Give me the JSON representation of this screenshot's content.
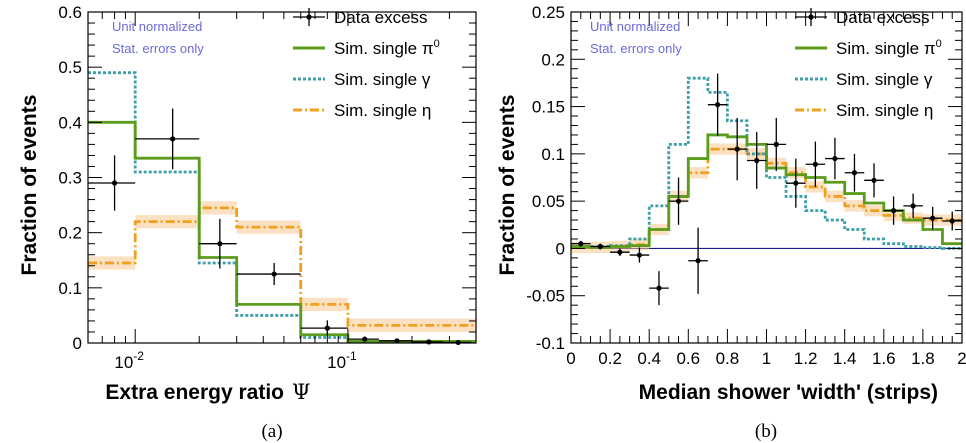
{
  "colors": {
    "data": "#000000",
    "pi0": "#5c9c1c",
    "gamma": "#3f9fa8",
    "eta": "#f0a020",
    "eta_band": "#f8c890",
    "zero_line": "#1a1a8a",
    "note": "#6a6ad8"
  },
  "chart_data": [
    {
      "type": "line",
      "panel": "(a)",
      "ylabel": "Fraction of events",
      "xlabel": "Extra energy ratio",
      "xlabel_symbol": "Ψ",
      "x_scale": "log",
      "xlim": [
        0.006,
        0.4
      ],
      "ylim": [
        0,
        0.6
      ],
      "y_ticks": [
        "0",
        "0.1",
        "0.2",
        "0.3",
        "0.4",
        "0.5",
        "0.6"
      ],
      "x_ticks": [
        {
          "base": "10",
          "exp": "-2"
        },
        {
          "base": "10",
          "exp": "-1"
        }
      ],
      "notes": [
        "Unit normalized",
        "Stat. errors only"
      ],
      "legend": {
        "position": "top-right",
        "entries": [
          {
            "key": "data",
            "label": "Data excess"
          },
          {
            "key": "pi0",
            "label": "Sim. single π",
            "sup": "0"
          },
          {
            "key": "gamma",
            "label": "Sim. single γ"
          },
          {
            "key": "eta",
            "label": "Sim. single η"
          }
        ]
      },
      "bin_edges": [
        0.006,
        0.01,
        0.02,
        0.03,
        0.06,
        0.1,
        0.4
      ],
      "series": [
        {
          "key": "pi0",
          "values": [
            0.4,
            0.335,
            0.155,
            0.07,
            0.015,
            0.003
          ]
        },
        {
          "key": "gamma",
          "values": [
            0.49,
            0.31,
            0.145,
            0.05,
            0.01,
            0.002
          ]
        },
        {
          "key": "eta",
          "values": [
            0.145,
            0.22,
            0.245,
            0.21,
            0.07,
            0.032
          ],
          "band": 0.012
        }
      ],
      "data_points": [
        {
          "x": 0.008,
          "y": 0.29,
          "xerr": [
            0.006,
            0.01
          ],
          "yerr": 0.05
        },
        {
          "x": 0.015,
          "y": 0.37,
          "xerr": [
            0.01,
            0.02
          ],
          "yerr": 0.055
        },
        {
          "x": 0.025,
          "y": 0.18,
          "xerr": [
            0.02,
            0.03
          ],
          "yerr": 0.045
        },
        {
          "x": 0.045,
          "y": 0.125,
          "xerr": [
            0.03,
            0.06
          ],
          "yerr": 0.02
        },
        {
          "x": 0.08,
          "y": 0.027,
          "xerr": [
            0.06,
            0.1
          ],
          "yerr": 0.014
        },
        {
          "x": 0.12,
          "y": 0.007,
          "xerr": [
            0.1,
            0.14
          ],
          "yerr": 0.004
        },
        {
          "x": 0.17,
          "y": 0.004,
          "xerr": [
            0.14,
            0.2
          ],
          "yerr": 0.003
        },
        {
          "x": 0.24,
          "y": 0.002,
          "xerr": [
            0.2,
            0.28
          ],
          "yerr": 0.002
        },
        {
          "x": 0.33,
          "y": 0.001,
          "xerr": [
            0.28,
            0.38
          ],
          "yerr": 0.001
        }
      ]
    },
    {
      "type": "line",
      "panel": "(b)",
      "ylabel": "Fraction of events",
      "xlabel": "Median shower 'width' (strips)",
      "x_scale": "linear",
      "xlim": [
        0,
        2
      ],
      "ylim": [
        -0.1,
        0.25
      ],
      "y_ticks": [
        {
          "v": -0.1,
          "label": "-0.1"
        },
        {
          "v": -0.05,
          "label": "-0.05"
        },
        {
          "v": 0,
          "label": "0"
        },
        {
          "v": 0.05,
          "label": "0.05"
        },
        {
          "v": 0.1,
          "label": "0.1"
        },
        {
          "v": 0.15,
          "label": "0.15"
        },
        {
          "v": 0.2,
          "label": "0.2"
        },
        {
          "v": 0.25,
          "label": "0.25"
        }
      ],
      "x_ticks": [
        {
          "v": 0,
          "label": "0"
        },
        {
          "v": 0.2,
          "label": "0.2"
        },
        {
          "v": 0.4,
          "label": "0.4"
        },
        {
          "v": 0.6,
          "label": "0.6"
        },
        {
          "v": 0.8,
          "label": "0.8"
        },
        {
          "v": 1,
          "label": "1"
        },
        {
          "v": 1.2,
          "label": "1.2"
        },
        {
          "v": 1.4,
          "label": "1.4"
        },
        {
          "v": 1.6,
          "label": "1.6"
        },
        {
          "v": 1.8,
          "label": "1.8"
        },
        {
          "v": 2,
          "label": "2"
        }
      ],
      "notes": [
        "Unit normalized",
        "Stat. errors only"
      ],
      "legend": {
        "position": "top-right",
        "entries": [
          {
            "key": "data",
            "label": "Data excess"
          },
          {
            "key": "pi0",
            "label": "Sim. single π",
            "sup": "0"
          },
          {
            "key": "gamma",
            "label": "Sim. single γ"
          },
          {
            "key": "eta",
            "label": "Sim. single η"
          }
        ]
      },
      "bin_edges": [
        0,
        0.1,
        0.2,
        0.3,
        0.4,
        0.5,
        0.6,
        0.7,
        0.8,
        0.9,
        1.0,
        1.1,
        1.2,
        1.3,
        1.4,
        1.5,
        1.6,
        1.7,
        1.8,
        1.9,
        2.0
      ],
      "series": [
        {
          "key": "pi0",
          "values": [
            0.002,
            0.001,
            0.002,
            0.003,
            0.02,
            0.055,
            0.095,
            0.12,
            0.118,
            0.11,
            0.085,
            0.078,
            0.075,
            0.07,
            0.058,
            0.048,
            0.04,
            0.03,
            0.02,
            0.005
          ]
        },
        {
          "key": "gamma",
          "values": [
            0.002,
            0.002,
            0.003,
            0.01,
            0.045,
            0.11,
            0.18,
            0.165,
            0.135,
            0.1,
            0.075,
            0.055,
            0.04,
            0.03,
            0.02,
            0.01,
            0.005,
            0.002,
            0.001,
            0.0
          ]
        },
        {
          "key": "eta",
          "values": [
            0.001,
            0.001,
            0.002,
            0.004,
            0.02,
            0.055,
            0.08,
            0.105,
            0.105,
            0.1,
            0.09,
            0.08,
            0.065,
            0.055,
            0.045,
            0.04,
            0.035,
            0.032,
            0.03,
            0.03
          ],
          "band": 0.006
        }
      ],
      "data_points": [
        {
          "x": 0.05,
          "y": 0.005,
          "xerr": [
            0,
            0.1
          ],
          "yerr": 0.003
        },
        {
          "x": 0.15,
          "y": 0.002,
          "xerr": [
            0.1,
            0.2
          ],
          "yerr": 0.003
        },
        {
          "x": 0.25,
          "y": -0.004,
          "xerr": [
            0.2,
            0.3
          ],
          "yerr": 0.004
        },
        {
          "x": 0.35,
          "y": -0.007,
          "xerr": [
            0.3,
            0.4
          ],
          "yerr": 0.008
        },
        {
          "x": 0.45,
          "y": -0.042,
          "xerr": [
            0.4,
            0.5
          ],
          "yerr": 0.018
        },
        {
          "x": 0.55,
          "y": 0.05,
          "xerr": [
            0.5,
            0.6
          ],
          "yerr": 0.025
        },
        {
          "x": 0.65,
          "y": -0.013,
          "xerr": [
            0.6,
            0.7
          ],
          "yerr": 0.035
        },
        {
          "x": 0.75,
          "y": 0.152,
          "xerr": [
            0.7,
            0.8
          ],
          "yerr": 0.033
        },
        {
          "x": 0.85,
          "y": 0.105,
          "xerr": [
            0.8,
            0.9
          ],
          "yerr": 0.033
        },
        {
          "x": 0.95,
          "y": 0.093,
          "xerr": [
            0.9,
            1.0
          ],
          "yerr": 0.03
        },
        {
          "x": 1.05,
          "y": 0.11,
          "xerr": [
            1.0,
            1.1
          ],
          "yerr": 0.028
        },
        {
          "x": 1.15,
          "y": 0.069,
          "xerr": [
            1.1,
            1.2
          ],
          "yerr": 0.026
        },
        {
          "x": 1.25,
          "y": 0.089,
          "xerr": [
            1.2,
            1.3
          ],
          "yerr": 0.024
        },
        {
          "x": 1.35,
          "y": 0.095,
          "xerr": [
            1.3,
            1.4
          ],
          "yerr": 0.022
        },
        {
          "x": 1.45,
          "y": 0.08,
          "xerr": [
            1.4,
            1.5
          ],
          "yerr": 0.02
        },
        {
          "x": 1.55,
          "y": 0.072,
          "xerr": [
            1.5,
            1.6
          ],
          "yerr": 0.018
        },
        {
          "x": 1.65,
          "y": 0.04,
          "xerr": [
            1.6,
            1.7
          ],
          "yerr": 0.015
        },
        {
          "x": 1.75,
          "y": 0.045,
          "xerr": [
            1.7,
            1.8
          ],
          "yerr": 0.013
        },
        {
          "x": 1.85,
          "y": 0.032,
          "xerr": [
            1.8,
            1.9
          ],
          "yerr": 0.012
        },
        {
          "x": 1.95,
          "y": 0.029,
          "xerr": [
            1.9,
            2.0
          ],
          "yerr": 0.01
        }
      ]
    }
  ]
}
